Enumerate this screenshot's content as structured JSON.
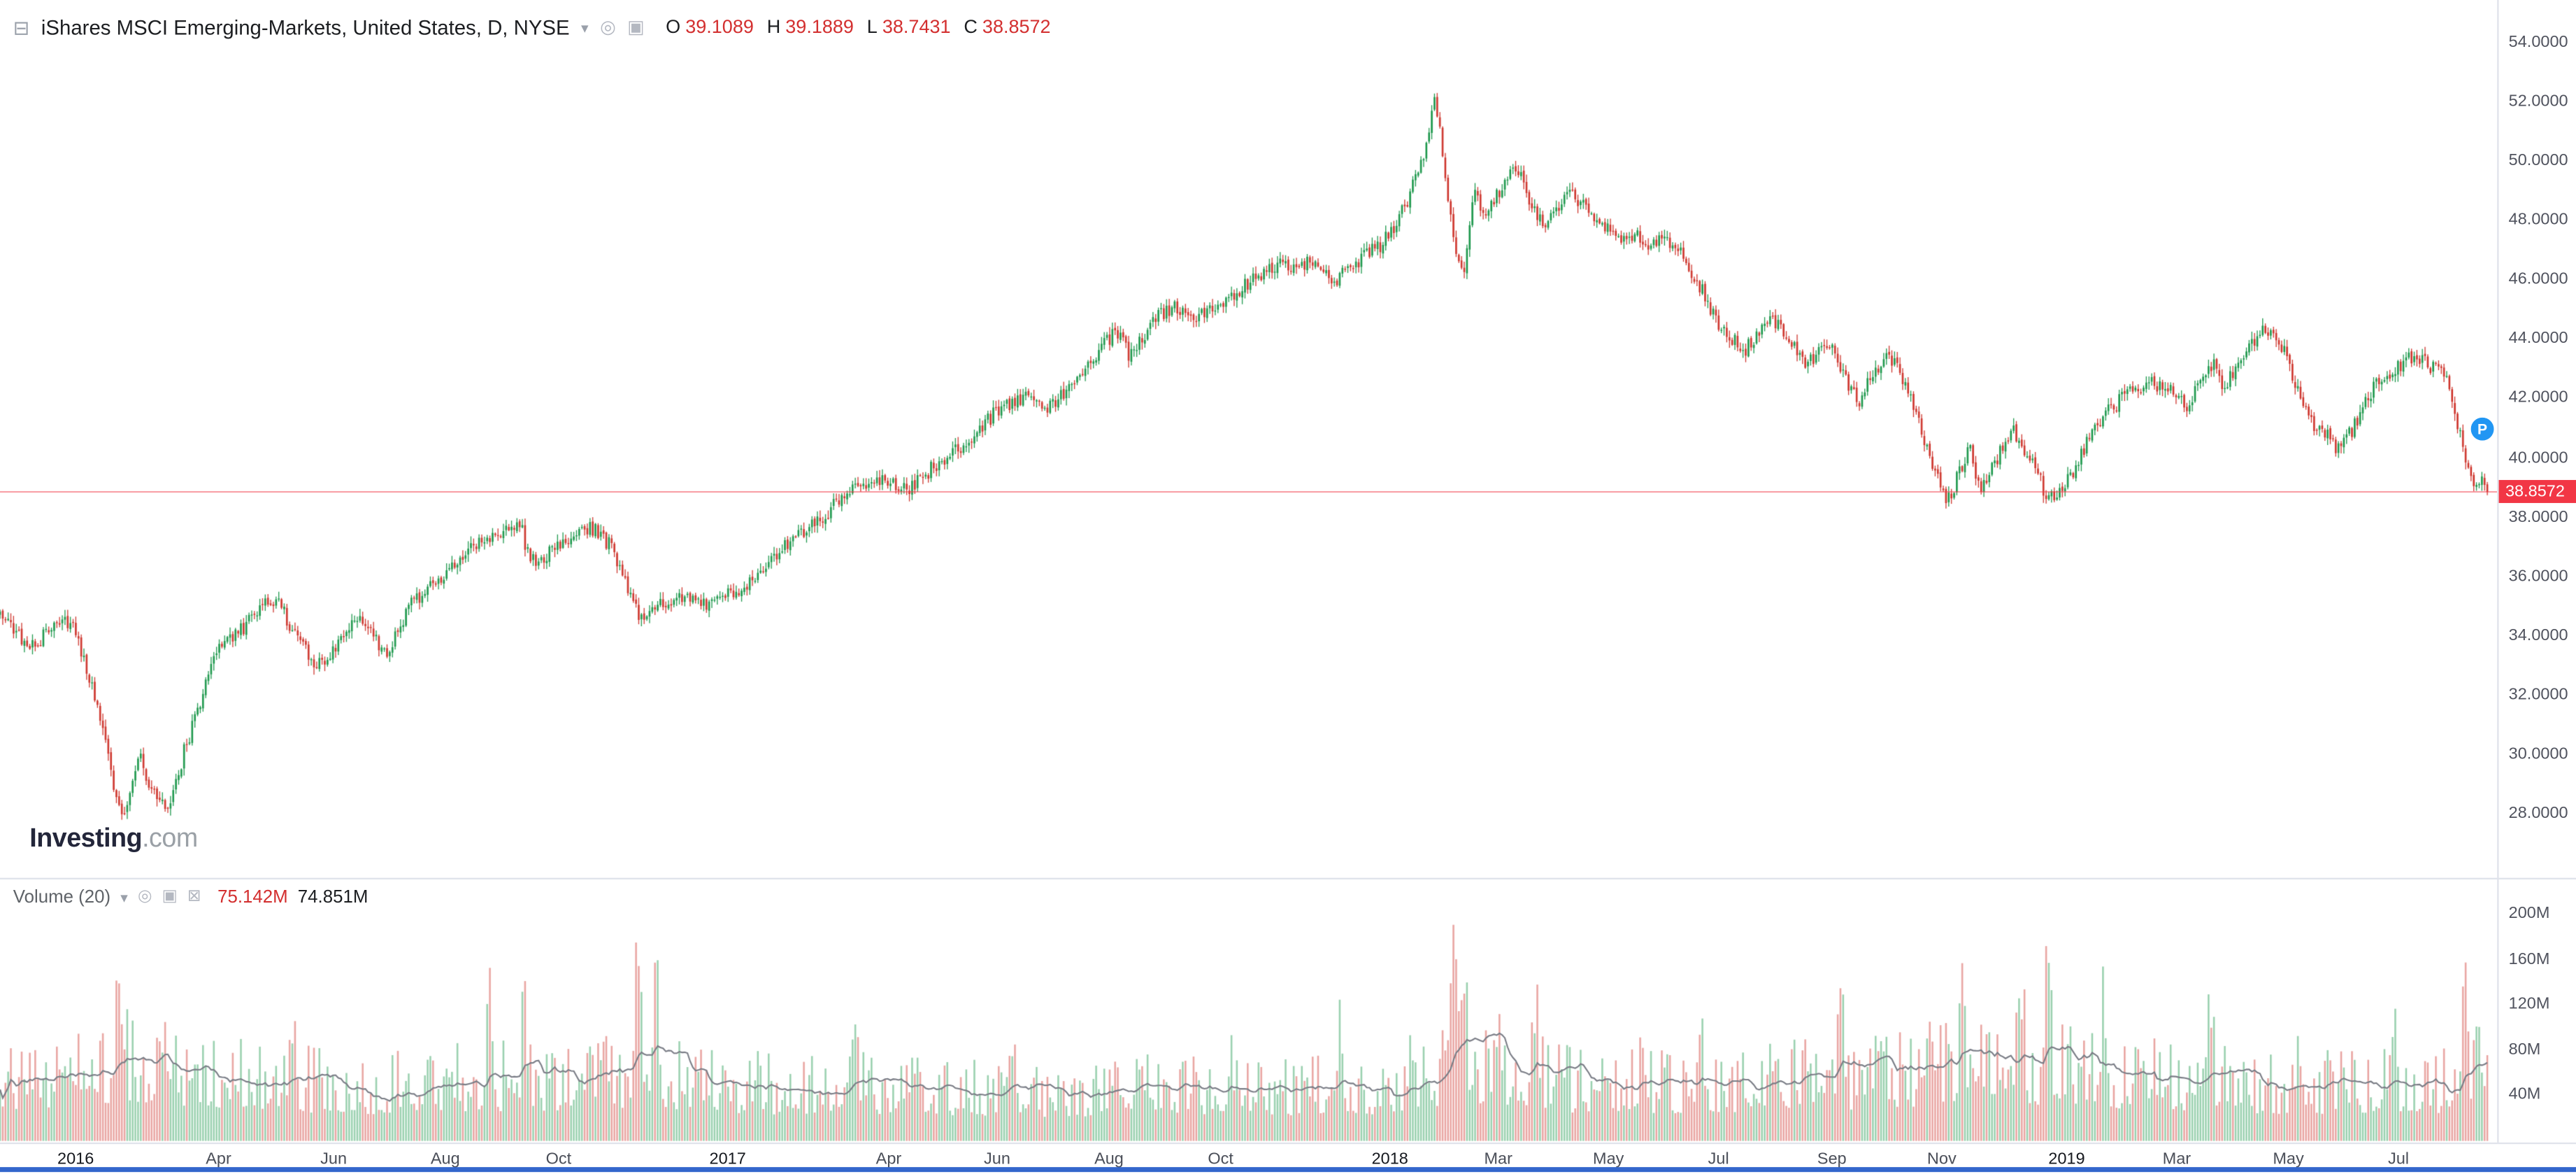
{
  "header": {
    "title": "iShares MSCI Emerging-Markets, United States, D, NYSE",
    "ohlc": [
      {
        "label": "O",
        "value": "39.1089"
      },
      {
        "label": "H",
        "value": "39.1889"
      },
      {
        "label": "L",
        "value": "38.7431"
      },
      {
        "label": "C",
        "value": "38.8572"
      }
    ]
  },
  "icons": {
    "collapse": "⊟",
    "caret": "▾",
    "chart_circle": "◎",
    "chart_square": "▣",
    "vol_visibility": "◎",
    "vol_settings": "▣",
    "vol_close": "⊠"
  },
  "watermark": {
    "brand": "Investing",
    "suffix": ".com"
  },
  "price_tag": "38.8572",
  "volume_header": {
    "label": "Volume (20)",
    "current": "75.142M",
    "ma": "74.851M"
  },
  "marker": {
    "label": "P"
  },
  "colors": {
    "up": "#229a50",
    "down": "#cf3a32",
    "ohlc_text": "#d32f2f",
    "tag_bg": "#f23645",
    "last_price_line": "#f23645",
    "ma_line": "#7a7d86",
    "badge": "#2196f3",
    "axis_text": "#50535e",
    "border": "#e0e3eb",
    "footer_bar": "#3366cc"
  },
  "chart_data": {
    "type": "candlestick",
    "title": "iShares MSCI Emerging-Markets, United States, D, NYSE",
    "timeframe": "D",
    "exchange": "NYSE",
    "last_ohlc": {
      "open": 39.1089,
      "high": 39.1889,
      "low": 38.7431,
      "close": 38.8572
    },
    "y_axis": {
      "ticks": [
        54,
        52,
        50,
        48,
        46,
        44,
        42,
        40,
        38,
        36,
        34,
        32,
        30,
        28
      ],
      "format": "0.0000"
    },
    "volume_axis": {
      "ticks": [
        200,
        160,
        120,
        80,
        40
      ],
      "unit": "M"
    },
    "volume_indicator": {
      "label": "Volume (20)",
      "current_m": 75.142,
      "ma_m": 74.851,
      "ma_period": 20
    },
    "x_axis": [
      {
        "label": "2016",
        "t": 0.0303,
        "year": true
      },
      {
        "label": "Apr",
        "t": 0.0875,
        "year": false
      },
      {
        "label": "Jun",
        "t": 0.1336,
        "year": false
      },
      {
        "label": "Aug",
        "t": 0.1783,
        "year": false
      },
      {
        "label": "Oct",
        "t": 0.2237,
        "year": false
      },
      {
        "label": "2017",
        "t": 0.2914,
        "year": true
      },
      {
        "label": "Apr",
        "t": 0.3559,
        "year": false
      },
      {
        "label": "Jun",
        "t": 0.3993,
        "year": false
      },
      {
        "label": "Aug",
        "t": 0.4441,
        "year": false
      },
      {
        "label": "Oct",
        "t": 0.4888,
        "year": false
      },
      {
        "label": "2018",
        "t": 0.5566,
        "year": true
      },
      {
        "label": "Mar",
        "t": 0.6,
        "year": false
      },
      {
        "label": "May",
        "t": 0.6441,
        "year": false
      },
      {
        "label": "Jul",
        "t": 0.6882,
        "year": false
      },
      {
        "label": "Sep",
        "t": 0.7336,
        "year": false
      },
      {
        "label": "Nov",
        "t": 0.7776,
        "year": false
      },
      {
        "label": "2019",
        "t": 0.8276,
        "year": true
      },
      {
        "label": "Mar",
        "t": 0.8717,
        "year": false
      },
      {
        "label": "May",
        "t": 0.9164,
        "year": false
      },
      {
        "label": "Jul",
        "t": 0.9605,
        "year": false
      }
    ],
    "candle_count": 920,
    "seed": 20190807,
    "price_path_anchors": [
      [
        0.0,
        34.9
      ],
      [
        0.006,
        34.2
      ],
      [
        0.012,
        33.5
      ],
      [
        0.018,
        34.1
      ],
      [
        0.024,
        34.5
      ],
      [
        0.03,
        34.2
      ],
      [
        0.036,
        32.6
      ],
      [
        0.042,
        30.4
      ],
      [
        0.047,
        28.3
      ],
      [
        0.05,
        27.9
      ],
      [
        0.056,
        29.9
      ],
      [
        0.061,
        28.6
      ],
      [
        0.068,
        28.2
      ],
      [
        0.074,
        30.2
      ],
      [
        0.08,
        31.6
      ],
      [
        0.086,
        33.4
      ],
      [
        0.092,
        33.9
      ],
      [
        0.098,
        34.3
      ],
      [
        0.104,
        34.9
      ],
      [
        0.11,
        35.3
      ],
      [
        0.116,
        34.4
      ],
      [
        0.122,
        33.5
      ],
      [
        0.128,
        33.0
      ],
      [
        0.134,
        33.6
      ],
      [
        0.14,
        34.4
      ],
      [
        0.146,
        34.6
      ],
      [
        0.151,
        33.9
      ],
      [
        0.155,
        33.2
      ],
      [
        0.16,
        34.4
      ],
      [
        0.166,
        35.2
      ],
      [
        0.172,
        35.7
      ],
      [
        0.18,
        36.2
      ],
      [
        0.188,
        36.9
      ],
      [
        0.196,
        37.4
      ],
      [
        0.203,
        37.6
      ],
      [
        0.208,
        37.9
      ],
      [
        0.212,
        36.5
      ],
      [
        0.217,
        36.6
      ],
      [
        0.223,
        37.1
      ],
      [
        0.23,
        37.5
      ],
      [
        0.238,
        37.6
      ],
      [
        0.244,
        37.1
      ],
      [
        0.25,
        36.0
      ],
      [
        0.256,
        34.6
      ],
      [
        0.261,
        34.8
      ],
      [
        0.268,
        35.2
      ],
      [
        0.274,
        35.4
      ],
      [
        0.281,
        35.0
      ],
      [
        0.288,
        35.2
      ],
      [
        0.295,
        35.5
      ],
      [
        0.302,
        35.9
      ],
      [
        0.31,
        36.6
      ],
      [
        0.318,
        37.3
      ],
      [
        0.326,
        37.8
      ],
      [
        0.334,
        38.4
      ],
      [
        0.342,
        38.9
      ],
      [
        0.35,
        39.3
      ],
      [
        0.357,
        39.1
      ],
      [
        0.364,
        38.9
      ],
      [
        0.371,
        39.5
      ],
      [
        0.378,
        40.0
      ],
      [
        0.385,
        40.4
      ],
      [
        0.392,
        40.9
      ],
      [
        0.399,
        41.6
      ],
      [
        0.406,
        41.9
      ],
      [
        0.412,
        42.2
      ],
      [
        0.419,
        41.6
      ],
      [
        0.426,
        42.2
      ],
      [
        0.433,
        42.8
      ],
      [
        0.44,
        43.6
      ],
      [
        0.447,
        44.3
      ],
      [
        0.452,
        43.5
      ],
      [
        0.458,
        44.1
      ],
      [
        0.464,
        44.8
      ],
      [
        0.47,
        45.1
      ],
      [
        0.477,
        44.7
      ],
      [
        0.484,
        44.9
      ],
      [
        0.49,
        45.2
      ],
      [
        0.497,
        45.7
      ],
      [
        0.503,
        46.1
      ],
      [
        0.509,
        46.4
      ],
      [
        0.514,
        46.8
      ],
      [
        0.519,
        46.2
      ],
      [
        0.524,
        46.8
      ],
      [
        0.529,
        46.3
      ],
      [
        0.535,
        46.0
      ],
      [
        0.541,
        46.4
      ],
      [
        0.547,
        46.8
      ],
      [
        0.553,
        47.2
      ],
      [
        0.558,
        47.7
      ],
      [
        0.563,
        48.6
      ],
      [
        0.568,
        49.6
      ],
      [
        0.572,
        50.9
      ],
      [
        0.5745,
        52.0
      ],
      [
        0.578,
        50.2
      ],
      [
        0.5825,
        46.9
      ],
      [
        0.586,
        46.3
      ],
      [
        0.59,
        48.9
      ],
      [
        0.5955,
        48.3
      ],
      [
        0.601,
        49.1
      ],
      [
        0.607,
        49.9
      ],
      [
        0.6125,
        48.6
      ],
      [
        0.618,
        47.9
      ],
      [
        0.624,
        48.4
      ],
      [
        0.63,
        49.0
      ],
      [
        0.6365,
        48.1
      ],
      [
        0.643,
        47.7
      ],
      [
        0.649,
        47.3
      ],
      [
        0.6545,
        47.6
      ],
      [
        0.66,
        47.1
      ],
      [
        0.666,
        47.5
      ],
      [
        0.672,
        47.0
      ],
      [
        0.678,
        46.2
      ],
      [
        0.683,
        45.4
      ],
      [
        0.688,
        44.6
      ],
      [
        0.6935,
        44.0
      ],
      [
        0.699,
        43.7
      ],
      [
        0.7045,
        44.2
      ],
      [
        0.71,
        44.7
      ],
      [
        0.716,
        44.2
      ],
      [
        0.722,
        43.2
      ],
      [
        0.728,
        43.5
      ],
      [
        0.734,
        43.9
      ],
      [
        0.7395,
        42.5
      ],
      [
        0.745,
        41.9
      ],
      [
        0.7505,
        43.0
      ],
      [
        0.7555,
        43.4
      ],
      [
        0.761,
        42.9
      ],
      [
        0.766,
        41.7
      ],
      [
        0.771,
        40.5
      ],
      [
        0.776,
        39.4
      ],
      [
        0.78,
        38.5
      ],
      [
        0.7845,
        39.5
      ],
      [
        0.789,
        40.3
      ],
      [
        0.793,
        38.9
      ],
      [
        0.797,
        39.5
      ],
      [
        0.801,
        40.2
      ],
      [
        0.8055,
        41.0
      ],
      [
        0.81,
        40.3
      ],
      [
        0.815,
        39.7
      ],
      [
        0.82,
        38.6
      ],
      [
        0.824,
        38.9
      ],
      [
        0.828,
        39.2
      ],
      [
        0.8335,
        40.2
      ],
      [
        0.839,
        41.0
      ],
      [
        0.8445,
        41.6
      ],
      [
        0.85,
        42.0
      ],
      [
        0.8555,
        42.3
      ],
      [
        0.861,
        42.6
      ],
      [
        0.866,
        42.4
      ],
      [
        0.871,
        42.1
      ],
      [
        0.876,
        41.8
      ],
      [
        0.881,
        42.7
      ],
      [
        0.886,
        43.2
      ],
      [
        0.89,
        42.4
      ],
      [
        0.8955,
        43.0
      ],
      [
        0.901,
        43.7
      ],
      [
        0.906,
        44.4
      ],
      [
        0.911,
        44.0
      ],
      [
        0.916,
        43.4
      ],
      [
        0.921,
        42.0
      ],
      [
        0.926,
        41.2
      ],
      [
        0.931,
        40.8
      ],
      [
        0.936,
        40.3
      ],
      [
        0.941,
        40.8
      ],
      [
        0.946,
        41.7
      ],
      [
        0.951,
        42.4
      ],
      [
        0.956,
        42.8
      ],
      [
        0.961,
        43.1
      ],
      [
        0.966,
        43.4
      ],
      [
        0.971,
        43.2
      ],
      [
        0.976,
        43.0
      ],
      [
        0.98,
        42.5
      ],
      [
        0.9835,
        41.4
      ],
      [
        0.987,
        39.9
      ],
      [
        0.99,
        39.2
      ],
      [
        0.993,
        39.3
      ],
      [
        0.996,
        38.86
      ]
    ],
    "volume_base_anchors": [
      [
        0.0,
        62
      ],
      [
        0.03,
        68
      ],
      [
        0.05,
        82
      ],
      [
        0.07,
        74
      ],
      [
        0.1,
        62
      ],
      [
        0.13,
        56
      ],
      [
        0.16,
        54
      ],
      [
        0.19,
        60
      ],
      [
        0.22,
        62
      ],
      [
        0.25,
        66
      ],
      [
        0.28,
        58
      ],
      [
        0.31,
        54
      ],
      [
        0.34,
        57
      ],
      [
        0.37,
        52
      ],
      [
        0.4,
        50
      ],
      [
        0.43,
        48
      ],
      [
        0.46,
        52
      ],
      [
        0.49,
        54
      ],
      [
        0.52,
        52
      ],
      [
        0.55,
        54
      ],
      [
        0.575,
        72
      ],
      [
        0.6,
        66
      ],
      [
        0.63,
        58
      ],
      [
        0.66,
        56
      ],
      [
        0.69,
        58
      ],
      [
        0.72,
        62
      ],
      [
        0.75,
        64
      ],
      [
        0.775,
        72
      ],
      [
        0.8,
        74
      ],
      [
        0.825,
        70
      ],
      [
        0.85,
        64
      ],
      [
        0.875,
        62
      ],
      [
        0.9,
        56
      ],
      [
        0.925,
        54
      ],
      [
        0.95,
        58
      ],
      [
        0.975,
        56
      ],
      [
        0.996,
        72
      ]
    ],
    "volume_spikes": [
      [
        0.047,
        55
      ],
      [
        0.066,
        40
      ],
      [
        0.117,
        55
      ],
      [
        0.196,
        105
      ],
      [
        0.21,
        60
      ],
      [
        0.2553,
        145
      ],
      [
        0.263,
        70
      ],
      [
        0.342,
        70
      ],
      [
        0.368,
        45
      ],
      [
        0.405,
        50
      ],
      [
        0.447,
        45
      ],
      [
        0.493,
        40
      ],
      [
        0.536,
        55
      ],
      [
        0.582,
        120
      ],
      [
        0.5865,
        95
      ],
      [
        0.599,
        50
      ],
      [
        0.615,
        45
      ],
      [
        0.658,
        40
      ],
      [
        0.681,
        50
      ],
      [
        0.737,
        55
      ],
      [
        0.753,
        50
      ],
      [
        0.773,
        95
      ],
      [
        0.786,
        65
      ],
      [
        0.809,
        80
      ],
      [
        0.82,
        130
      ],
      [
        0.842,
        50
      ],
      [
        0.885,
        70
      ],
      [
        0.921,
        35
      ],
      [
        0.958,
        55
      ],
      [
        0.987,
        80
      ],
      [
        0.993,
        50
      ]
    ]
  }
}
